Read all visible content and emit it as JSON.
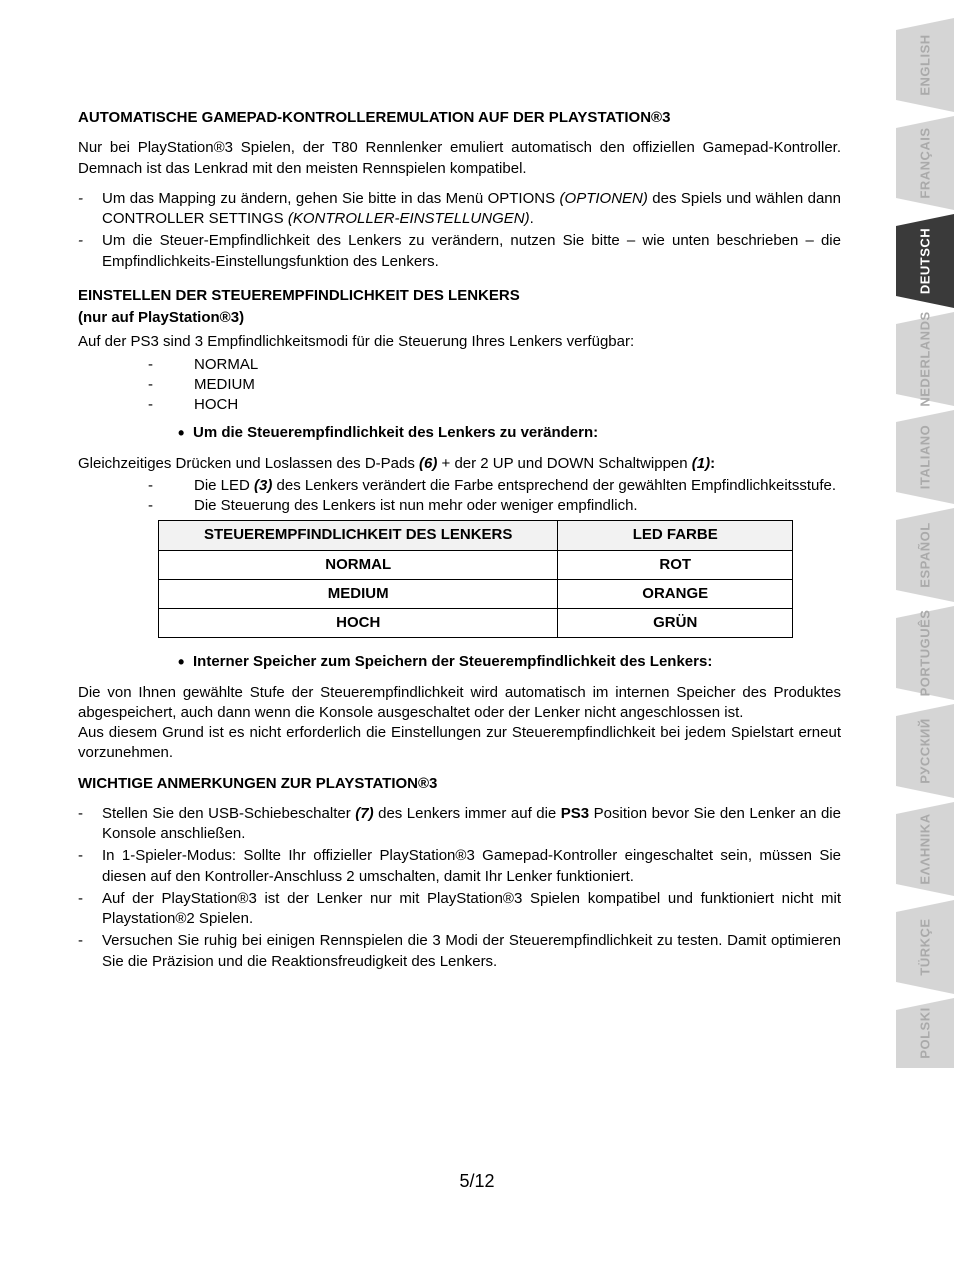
{
  "h1": "AUTOMATISCHE GAMEPAD-KONTROLLEREMULATION AUF DER PLAYSTATION®3",
  "p1": "Nur bei PlayStation®3 Spielen, der T80 Rennlenker emuliert automatisch den offiziellen Gamepad-Kontroller. Demnach ist das Lenkrad mit den meisten Rennspielen kompatibel.",
  "bl1a_1": "Um das Mapping zu ändern, gehen Sie bitte in das Menü OPTIONS ",
  "bl1a_2": "(OPTIONEN)",
  "bl1a_3": " des Spiels und wählen dann CONTROLLER SETTINGS ",
  "bl1a_4": "(KONTROLLER-EINSTELLUNGEN)",
  "bl1a_5": ".",
  "bl1b": "Um die Steuer-Empfindlichkeit des Lenkers zu verändern, nutzen Sie bitte – wie unten beschrieben – die Empfindlichkeits-Einstellungsfunktion des Lenkers.",
  "h2": "EINSTELLEN DER STEUEREMPFINDLICHKEIT DES LENKERS",
  "h2b": "(nur auf PlayStation®3)",
  "p2": "Auf der PS3 sind 3 Empfindlichkeitsmodi für die Steuerung Ihres Lenkers verfügbar:",
  "modes": [
    "NORMAL",
    "MEDIUM",
    "HOCH"
  ],
  "bullet1": "Um die Steuerempfindlichkeit des Lenkers zu verändern:",
  "p3_1": "Gleichzeitiges Drücken und Loslassen des D-Pads ",
  "p3_2": "(6)",
  "p3_3": " + der 2 UP und DOWN Schaltwippen ",
  "p3_4": "(1)",
  "p3_5": ":",
  "il1_1": "Die LED ",
  "il1_2": "(3)",
  "il1_3": " des Lenkers verändert die Farbe entsprechend der gewählten Empfindlichkeitsstufe.",
  "il2": "Die Steuerung des Lenkers ist nun mehr oder weniger empfindlich.",
  "table": {
    "h1": "STEUEREMPFINDLICHKEIT DES LENKERS",
    "h2": "LED FARBE",
    "rows": [
      [
        "NORMAL",
        "ROT"
      ],
      [
        "MEDIUM",
        "ORANGE"
      ],
      [
        "HOCH",
        "GRÜN"
      ]
    ]
  },
  "bullet2": "Interner Speicher zum Speichern der Steuerempfindlichkeit des Lenkers:",
  "p4": "Die von Ihnen gewählte Stufe der Steuerempfindlichkeit wird automatisch im internen Speicher des Produktes abgespeichert, auch dann wenn die Konsole ausgeschaltet oder der Lenker nicht angeschlossen ist.",
  "p5": "Aus diesem Grund ist es nicht erforderlich die Einstellungen zur Steuerempfindlichkeit bei jedem Spielstart erneut vorzunehmen.",
  "h3": "WICHTIGE ANMERKUNGEN ZUR PLAYSTATION®3",
  "n1_1": "Stellen Sie den USB-Schiebeschalter ",
  "n1_2": "(7)",
  "n1_3": " des Lenkers immer auf die ",
  "n1_4": "PS3",
  "n1_5": " Position bevor Sie den Lenker an die Konsole anschließen.",
  "n2": "In 1-Spieler-Modus: Sollte Ihr offizieller PlayStation®3 Gamepad-Kontroller eingeschaltet sein, müssen Sie diesen auf den Kontroller-Anschluss 2 umschalten, damit Ihr Lenker funktioniert.",
  "n3": "Auf der PlayStation®3 ist der Lenker nur mit PlayStation®3 Spielen kompatibel und funktioniert nicht mit Playstation®2 Spielen.",
  "n4": "Versuchen Sie ruhig bei einigen Rennspielen die 3 Modi der Steuerempfindlichkeit zu testen. Damit optimieren Sie die Präzision und die Reaktionsfreudigkeit des Lenkers.",
  "page": "5/12",
  "langs": [
    "ENGLISH",
    "FRANÇAIS",
    "DEUTSCH",
    "NEDERLANDS",
    "ITALIANO",
    "ESPAÑOL",
    "PORTUGUÊS",
    "РУССКИЙ",
    "ΕΛΛΗΝΙΚΑ",
    "TÜRKÇE",
    "POLSKI"
  ],
  "active_lang_index": 2
}
